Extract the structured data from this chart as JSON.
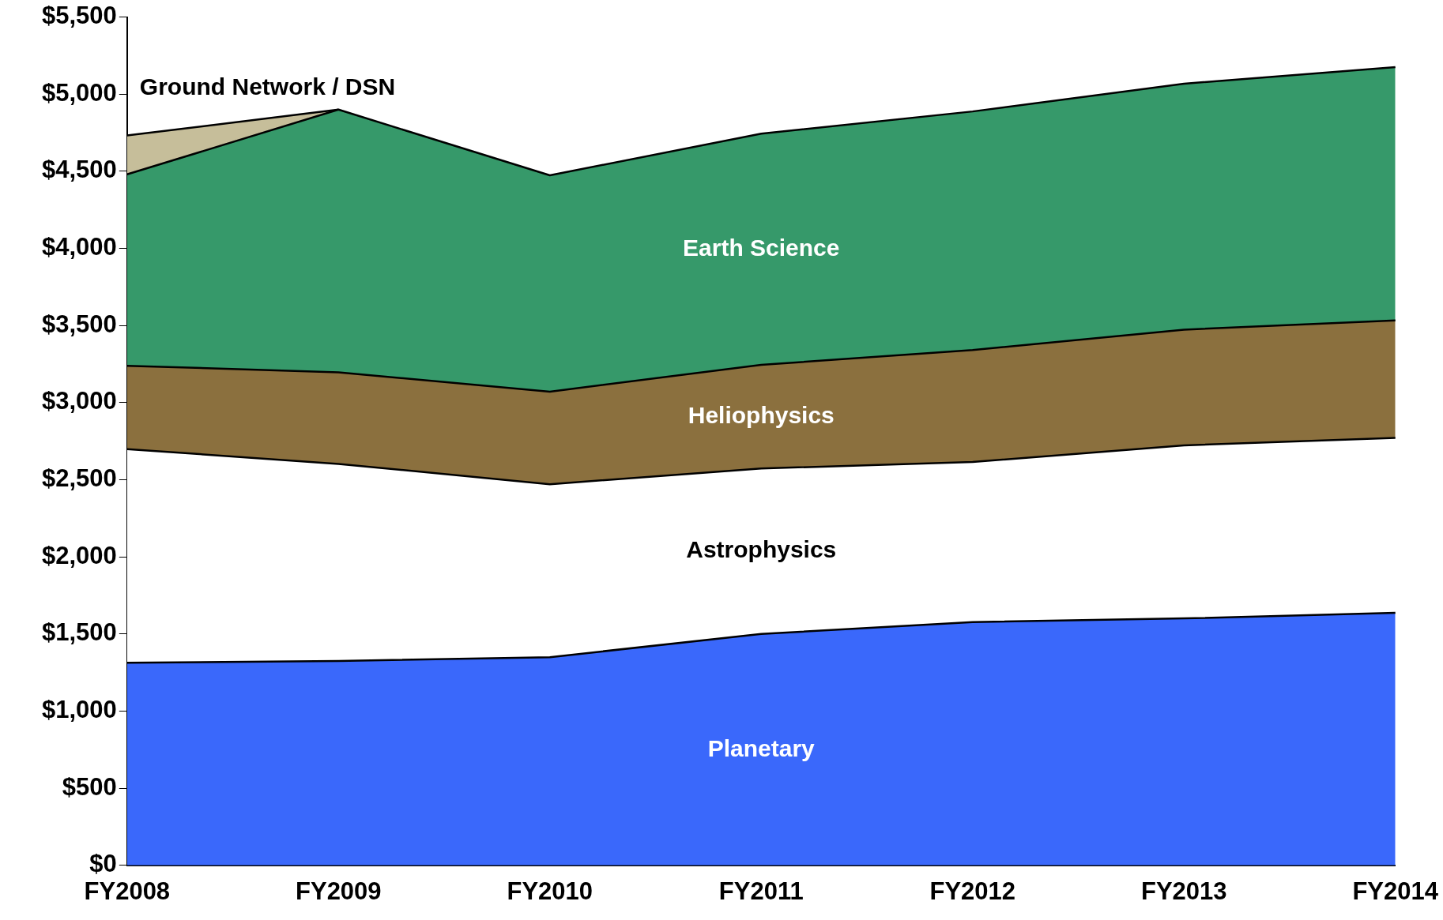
{
  "chart_data": {
    "type": "area",
    "stacked": true,
    "categories": [
      "FY2008",
      "FY2009",
      "FY2010",
      "FY2011",
      "FY2012",
      "FY2013",
      "FY2014"
    ],
    "series": [
      {
        "name": "Planetary",
        "color": "#3a68fb",
        "values": [
          1313,
          1325,
          1350,
          1500,
          1577,
          1601,
          1637
        ]
      },
      {
        "name": "Astrophysics",
        "color": "#ffffff",
        "values": [
          1386,
          1278,
          1121,
          1073,
          1038,
          1122,
          1134
        ]
      },
      {
        "name": "Heliophysics",
        "color": "#8b703e",
        "values": [
          540,
          594,
          600,
          672,
          726,
          750,
          762
        ]
      },
      {
        "name": "Earth Science",
        "color": "#36996a",
        "values": [
          1241,
          1703,
          1403,
          1499,
          1547,
          1595,
          1643
        ]
      },
      {
        "name": "Ground Network / DSN",
        "color": "#c6be9a",
        "values": [
          252,
          0,
          null,
          null,
          null,
          null,
          null
        ]
      }
    ],
    "ylim": [
      0,
      5500
    ],
    "yticks": [
      {
        "value": 0,
        "label": "$0"
      },
      {
        "value": 500,
        "label": "$500"
      },
      {
        "value": 1000,
        "label": "$1,000"
      },
      {
        "value": 1500,
        "label": "$1,500"
      },
      {
        "value": 2000,
        "label": "$2,000"
      },
      {
        "value": 2500,
        "label": "$2,500"
      },
      {
        "value": 3000,
        "label": "$3,000"
      },
      {
        "value": 3500,
        "label": "$3,500"
      },
      {
        "value": 4000,
        "label": "$4,000"
      },
      {
        "value": 4500,
        "label": "$4,500"
      },
      {
        "value": 5000,
        "label": "$5,000"
      },
      {
        "value": 5500,
        "label": "$5,500"
      }
    ],
    "grid": false,
    "legend": false
  }
}
